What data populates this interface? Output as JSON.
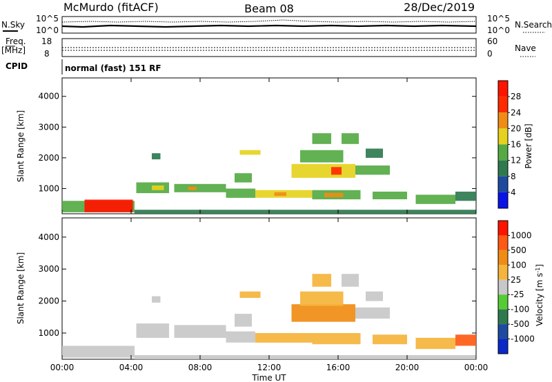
{
  "header": {
    "station": "McMurdo (fitACF)",
    "beam": "Beam 08",
    "date": "28/Dec/2019"
  },
  "noise_panel": {
    "left_label": "N.Sky",
    "right_label": "N.Search",
    "tick_top": "10^5",
    "tick_bottom": "10^0"
  },
  "freq_panel": {
    "left_label_1": "Freq.",
    "left_label_2": "[MHz]",
    "left_tick_top": "18",
    "left_tick_bottom": "8",
    "right_label": "Nave",
    "right_tick_top": "60",
    "right_tick_bottom": "0"
  },
  "cpid_panel": {
    "label": "CPID",
    "program": "normal (fast) 151 RF"
  },
  "colors": {
    "power": [
      "#0a14e6",
      "#1e4aa0",
      "#2e7a4e",
      "#55aa44",
      "#e6d21e",
      "#f08c14",
      "#ff2a00",
      "#ff1400"
    ],
    "velocity": [
      "#ff1400",
      "#ff5a14",
      "#f08c14",
      "#f5b43c",
      "#c8c8c8",
      "#55cc33",
      "#2e7a4e",
      "#1e4aa0",
      "#0a28c8"
    ]
  },
  "chart_data": [
    {
      "type": "heatmap",
      "title": "",
      "xlabel": "",
      "ylabel": "Slant Range [km]",
      "x_ticks": [
        "00:00",
        "04:00",
        "08:00",
        "12:00",
        "16:00",
        "20:00",
        "00:00"
      ],
      "xlim": [
        0,
        24
      ],
      "y_ticks": [
        1000,
        2000,
        3000,
        4000
      ],
      "ylim": [
        180,
        4600
      ],
      "colorbar": {
        "label": "Power [dB]",
        "ticks": [
          4,
          8,
          12,
          16,
          20,
          24,
          28
        ],
        "range": [
          0,
          32
        ]
      },
      "patches": [
        {
          "t0": 0.0,
          "t1": 4.2,
          "r0": 230,
          "r1": 600,
          "v": 13
        },
        {
          "t0": 1.3,
          "t1": 4.1,
          "r0": 230,
          "r1": 640,
          "v": 31
        },
        {
          "t0": 4.2,
          "t1": 24.0,
          "r0": 180,
          "r1": 310,
          "v": 10
        },
        {
          "t0": 4.3,
          "t1": 6.2,
          "r0": 850,
          "r1": 1200,
          "v": 13
        },
        {
          "t0": 5.2,
          "t1": 5.9,
          "r0": 950,
          "r1": 1100,
          "v": 18
        },
        {
          "t0": 6.5,
          "t1": 9.5,
          "r0": 880,
          "r1": 1150,
          "v": 14
        },
        {
          "t0": 7.3,
          "t1": 7.8,
          "r0": 950,
          "r1": 1060,
          "v": 20
        },
        {
          "t0": 9.5,
          "t1": 11.2,
          "r0": 700,
          "r1": 1000,
          "v": 14
        },
        {
          "t0": 11.2,
          "t1": 14.5,
          "r0": 700,
          "r1": 950,
          "v": 16
        },
        {
          "t0": 12.3,
          "t1": 13.0,
          "r0": 760,
          "r1": 880,
          "v": 22
        },
        {
          "t0": 14.5,
          "t1": 17.3,
          "r0": 650,
          "r1": 950,
          "v": 15
        },
        {
          "t0": 15.2,
          "t1": 16.3,
          "r0": 720,
          "r1": 860,
          "v": 23
        },
        {
          "t0": 18.0,
          "t1": 20.0,
          "r0": 650,
          "r1": 900,
          "v": 14
        },
        {
          "t0": 20.5,
          "t1": 22.8,
          "r0": 500,
          "r1": 800,
          "v": 13
        },
        {
          "t0": 22.8,
          "t1": 24.0,
          "r0": 600,
          "r1": 900,
          "v": 10
        },
        {
          "t0": 10.0,
          "t1": 11.0,
          "r0": 1200,
          "r1": 1500,
          "v": 14
        },
        {
          "t0": 13.3,
          "t1": 17.0,
          "r0": 1350,
          "r1": 1800,
          "v": 16
        },
        {
          "t0": 15.6,
          "t1": 16.2,
          "r0": 1450,
          "r1": 1700,
          "v": 27
        },
        {
          "t0": 17.0,
          "t1": 19.0,
          "r0": 1450,
          "r1": 1750,
          "v": 14
        },
        {
          "t0": 13.8,
          "t1": 16.3,
          "r0": 1850,
          "r1": 2250,
          "v": 14
        },
        {
          "t0": 10.3,
          "t1": 11.5,
          "r0": 2100,
          "r1": 2250,
          "v": 18
        },
        {
          "t0": 14.5,
          "t1": 15.6,
          "r0": 2450,
          "r1": 2800,
          "v": 12
        },
        {
          "t0": 16.2,
          "t1": 17.2,
          "r0": 2450,
          "r1": 2800,
          "v": 12
        },
        {
          "t0": 5.2,
          "t1": 5.7,
          "r0": 1950,
          "r1": 2150,
          "v": 10
        },
        {
          "t0": 17.6,
          "t1": 18.6,
          "r0": 2000,
          "r1": 2300,
          "v": 11
        }
      ]
    },
    {
      "type": "heatmap",
      "title": "",
      "xlabel": "Time UT",
      "ylabel": "Slant Range [km]",
      "x_ticks": [
        "00:00",
        "04:00",
        "08:00",
        "12:00",
        "16:00",
        "20:00",
        "00:00"
      ],
      "xlim": [
        0,
        24
      ],
      "y_ticks": [
        1000,
        2000,
        3000,
        4000
      ],
      "ylim": [
        180,
        4600
      ],
      "colorbar": {
        "label": "Velocity [m s^-1]",
        "ticks": [
          1000,
          500,
          100,
          25,
          -25,
          -100,
          -500,
          -1000
        ],
        "range": [
          -1200,
          1200
        ]
      },
      "patches": [
        {
          "t0": 0.0,
          "t1": 4.2,
          "r0": 230,
          "r1": 600,
          "v": 5
        },
        {
          "t0": 4.2,
          "t1": 24.0,
          "r0": 180,
          "r1": 310,
          "v": 0
        },
        {
          "t0": 4.3,
          "t1": 6.2,
          "r0": 850,
          "r1": 1300,
          "v": 60
        },
        {
          "t0": 6.5,
          "t1": 9.5,
          "r0": 850,
          "r1": 1250,
          "v": 50
        },
        {
          "t0": 9.5,
          "t1": 11.2,
          "r0": 700,
          "r1": 1050,
          "v": 70
        },
        {
          "t0": 11.2,
          "t1": 14.5,
          "r0": 700,
          "r1": 1000,
          "v": -300
        },
        {
          "t0": 14.5,
          "t1": 17.3,
          "r0": 650,
          "r1": 1000,
          "v": -250
        },
        {
          "t0": 18.0,
          "t1": 20.0,
          "r0": 650,
          "r1": 950,
          "v": -150
        },
        {
          "t0": 20.5,
          "t1": 22.8,
          "r0": 500,
          "r1": 850,
          "v": -300
        },
        {
          "t0": 22.8,
          "t1": 24.0,
          "r0": 600,
          "r1": 950,
          "v": -900
        },
        {
          "t0": 10.0,
          "t1": 11.0,
          "r0": 1200,
          "r1": 1600,
          "v": 0
        },
        {
          "t0": 13.3,
          "t1": 17.0,
          "r0": 1350,
          "r1": 1900,
          "v": -400
        },
        {
          "t0": 17.0,
          "t1": 19.0,
          "r0": 1450,
          "r1": 1800,
          "v": -80
        },
        {
          "t0": 13.8,
          "t1": 16.3,
          "r0": 1850,
          "r1": 2300,
          "v": -350
        },
        {
          "t0": 10.3,
          "t1": 11.5,
          "r0": 2100,
          "r1": 2300,
          "v": -200
        },
        {
          "t0": 14.5,
          "t1": 15.6,
          "r0": 2450,
          "r1": 2850,
          "v": -150
        },
        {
          "t0": 16.2,
          "t1": 17.2,
          "r0": 2450,
          "r1": 2850,
          "v": 60
        },
        {
          "t0": 5.2,
          "t1": 5.7,
          "r0": 1950,
          "r1": 2150,
          "v": -60
        },
        {
          "t0": 17.6,
          "t1": 18.6,
          "r0": 2000,
          "r1": 2300,
          "v": 0
        }
      ]
    }
  ]
}
